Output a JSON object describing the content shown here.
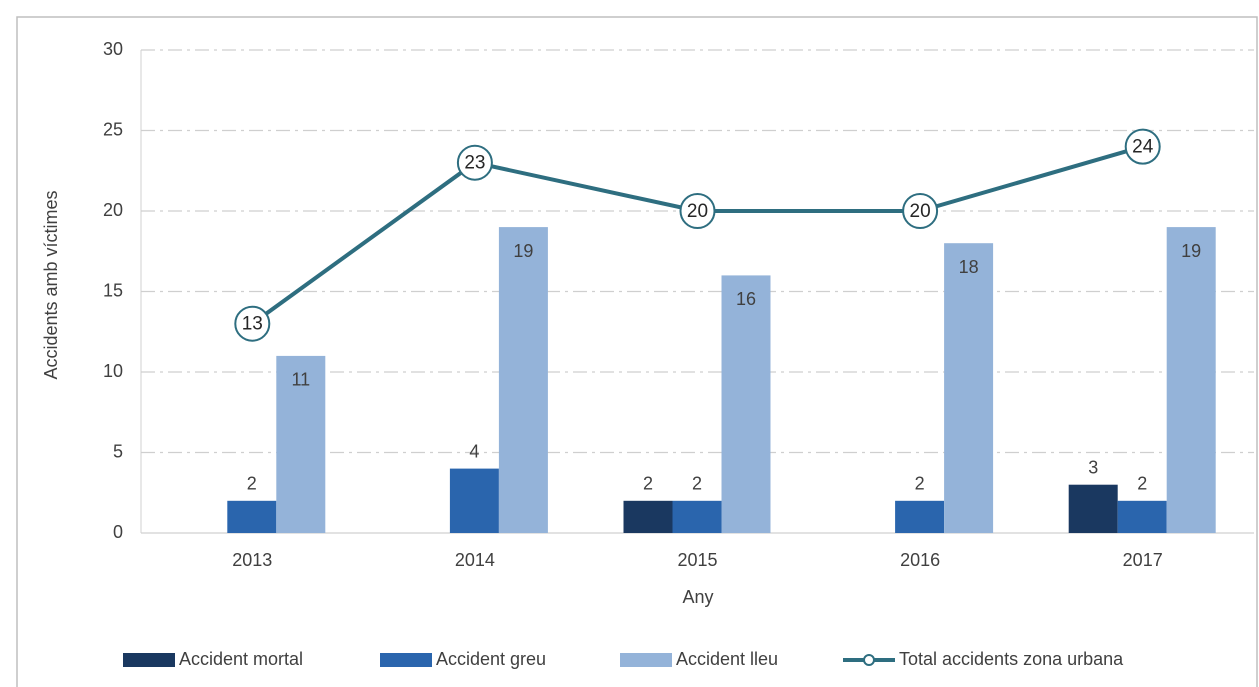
{
  "chart_data": {
    "type": "bar",
    "x_label": "Any",
    "y_label": "Accidents amb víctimes",
    "categories": [
      "2013",
      "2014",
      "2015",
      "2016",
      "2017"
    ],
    "series": [
      {
        "name": "Accident mortal",
        "color": "#1a3860",
        "values": [
          null,
          null,
          2,
          null,
          3
        ]
      },
      {
        "name": "Accident greu",
        "color": "#2a65ad",
        "values": [
          2,
          4,
          2,
          2,
          2
        ]
      },
      {
        "name": "Accident lleu",
        "color": "#94b3d9",
        "values": [
          11,
          19,
          16,
          18,
          19
        ]
      },
      {
        "name": "Total accidents zona urbana",
        "type": "line",
        "color": "#2e6e80",
        "values": [
          13,
          23,
          20,
          20,
          24
        ]
      }
    ],
    "ylim": [
      0,
      30
    ],
    "yticks": [
      0,
      5,
      10,
      15,
      20,
      25,
      30
    ],
    "grid": true,
    "legend": "bottom"
  }
}
